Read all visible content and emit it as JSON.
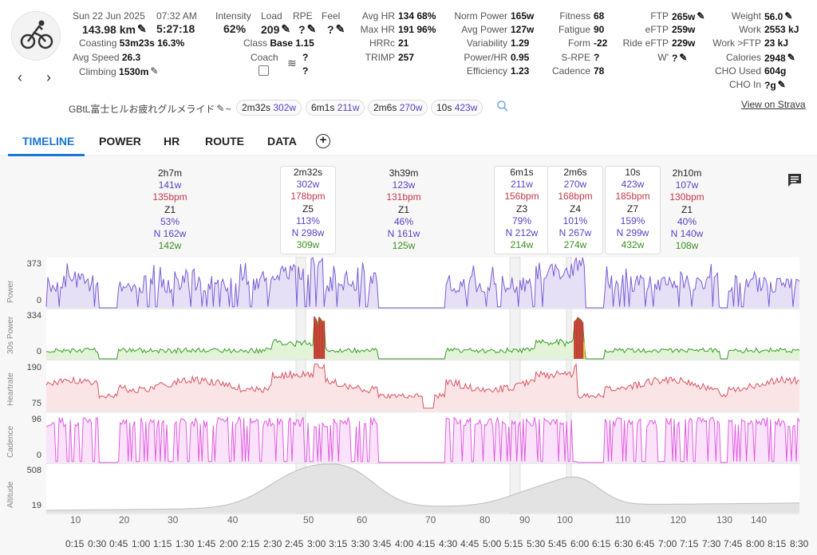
{
  "header": {
    "date": "Sun 22 Jun 2025",
    "time": "07:32 AM",
    "distance": "143.98 km",
    "duration": "5:27:18",
    "coasting_label": "Coasting",
    "coasting_value": "53m23s 16.3%",
    "avg_speed_label": "Avg Speed",
    "avg_speed_value": "26.3",
    "climbing_label": "Climbing",
    "climbing_value": "1530m"
  },
  "col_load": {
    "intensity_label": "Intensity",
    "intensity_value": "62%",
    "load_label": "Load",
    "load_value": "209",
    "rpe_label": "RPE",
    "rpe_value": "?",
    "feel_label": "Feel",
    "feel_value": "?",
    "class_label": "Class",
    "class_value": "Base 1.15",
    "coach_label": "Coach",
    "wind_value1": "?",
    "wind_value2": "?"
  },
  "col_hr": [
    {
      "label": "Avg HR",
      "value": "134 68%"
    },
    {
      "label": "Max HR",
      "value": "191 96%"
    },
    {
      "label": "HRRc",
      "value": "21"
    },
    {
      "label": "TRIMP",
      "value": "257"
    }
  ],
  "col_power": [
    {
      "label": "Norm Power",
      "value": "165w"
    },
    {
      "label": "Avg Power",
      "value": "127w"
    },
    {
      "label": "Variability",
      "value": "1.29"
    },
    {
      "label": "Power/HR",
      "value": "0.95"
    },
    {
      "label": "Efficiency",
      "value": "1.23"
    }
  ],
  "col_fitness": [
    {
      "label": "Fitness",
      "value": "68"
    },
    {
      "label": "Fatigue",
      "value": "90"
    },
    {
      "label": "Form",
      "value": "-22"
    },
    {
      "label": "S-RPE",
      "value": "?"
    },
    {
      "label": "Cadence",
      "value": "78"
    }
  ],
  "col_ftp": [
    {
      "label": "FTP",
      "value": "265w"
    },
    {
      "label": "eFTP",
      "value": "259w"
    },
    {
      "label": "Ride eFTP",
      "value": "229w"
    },
    {
      "label": "W'",
      "value": "?"
    }
  ],
  "col_weight": [
    {
      "label": "Weight",
      "value": "56.0"
    },
    {
      "label": "Work",
      "value": "2553 kJ"
    },
    {
      "label": "Work >FTP",
      "value": "23 kJ"
    },
    {
      "label": "Calories",
      "value": "2948"
    },
    {
      "label": "CHO Used",
      "value": "604g"
    },
    {
      "label": "CHO In",
      "value": "?g"
    }
  ],
  "activity_name": "GBtL富士ヒルお疲れグルメライド",
  "tilde": "~",
  "chips": [
    {
      "dur": "2m32s",
      "w": "302w"
    },
    {
      "dur": "6m1s",
      "w": "211w"
    },
    {
      "dur": "2m6s",
      "w": "270w"
    },
    {
      "dur": "10s",
      "w": "423w"
    }
  ],
  "strava_link": "View on Strava",
  "tabs": [
    "TIMELINE",
    "POWER",
    "HR",
    "ROUTE",
    "DATA"
  ],
  "add_tab": "+",
  "segments": [
    {
      "dur": "2h7m",
      "w": "141w",
      "bpm": "135bpm",
      "zone": "Z1",
      "pct": "53%",
      "np": "N 162w",
      "w2": "142w",
      "boxed": false
    },
    {
      "dur": "2m32s",
      "w": "302w",
      "bpm": "178bpm",
      "zone": "Z5",
      "pct": "113%",
      "np": "N 298w",
      "w2": "309w",
      "boxed": true
    },
    {
      "dur": "3h39m",
      "w": "123w",
      "bpm": "131bpm",
      "zone": "Z1",
      "pct": "46%",
      "np": "N 161w",
      "w2": "125w",
      "boxed": false
    },
    {
      "dur": "6m1s",
      "w": "211w",
      "bpm": "156bpm",
      "zone": "Z3",
      "pct": "79%",
      "np": "N 212w",
      "w2": "214w",
      "boxed": true
    },
    {
      "dur": "2m6s",
      "w": "270w",
      "bpm": "168bpm",
      "zone": "Z4",
      "pct": "101%",
      "np": "N 267w",
      "w2": "274w",
      "boxed": true
    },
    {
      "dur": "10s",
      "w": "423w",
      "bpm": "185bpm",
      "zone": "Z7",
      "pct": "159%",
      "np": "N 299w",
      "w2": "432w",
      "boxed": true
    },
    {
      "dur": "2h10m",
      "w": "107w",
      "bpm": "130bpm",
      "zone": "Z1",
      "pct": "40%",
      "np": "N 140w",
      "w2": "108w",
      "boxed": false
    }
  ],
  "panels": [
    {
      "name": "Power",
      "max": "373",
      "min": "0"
    },
    {
      "name": "30s Power",
      "max": "334",
      "min": "0"
    },
    {
      "name": "Heartrate",
      "max": "190",
      "min": "75"
    },
    {
      "name": "Cadence",
      "max": "96",
      "min": "0"
    },
    {
      "name": "Altitude",
      "max": "508",
      "min": "19"
    }
  ],
  "km_ticks": [
    "10",
    "20",
    "30",
    "40",
    "50",
    "60",
    "70",
    "80",
    "90",
    "100",
    "110",
    "120",
    "130",
    "140"
  ],
  "time_ticks": [
    "0:15",
    "0:30",
    "0:45",
    "1:00",
    "1:15",
    "1:30",
    "1:45",
    "2:00",
    "2:15",
    "2:30",
    "2:45",
    "3:00",
    "3:15",
    "3:30",
    "3:45",
    "4:00",
    "4:15",
    "4:30",
    "4:45",
    "5:00",
    "5:15",
    "5:30",
    "5:45",
    "6:00",
    "6:15",
    "6:30",
    "6:45",
    "7:00",
    "7:15",
    "7:30",
    "7:45",
    "8:00",
    "8:15",
    "8:30"
  ],
  "colors": {
    "power": "#7a5cd6",
    "power_fill": "#e6e0f7",
    "hr": "#d9535f",
    "hr_fill": "#fbe4e6",
    "cad": "#e05ce0",
    "cad_fill": "#fae3fa",
    "alt_fill": "#e3e3e3",
    "alt_line": "#bdbdbd",
    "green": "#3a9a2a",
    "accent": "#1976d2"
  }
}
